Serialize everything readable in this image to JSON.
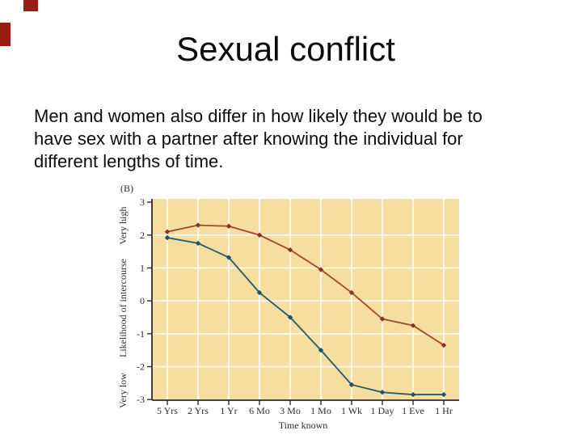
{
  "decor": {
    "corner_mark_color": "#9B1C12"
  },
  "title": {
    "text": "Sexual conflict"
  },
  "body": {
    "lines": [
      "Men and women also differ in how likely they would be to",
      "have sex with a partner after knowing the individual for",
      "different lengths of time."
    ]
  },
  "chart_data": {
    "type": "line",
    "panel_label": "(B)",
    "categories": [
      "5 Yrs",
      "2 Yrs",
      "1 Yr",
      "6 Mo",
      "3 Mo",
      "1 Mo",
      "1 Wk",
      "1 Day",
      "1 Eve",
      "1 Hr"
    ],
    "series": [
      {
        "name": "red-line",
        "color": "#A14733",
        "marker_color": "#8A331F",
        "values": [
          2.1,
          2.3,
          2.27,
          2.0,
          1.55,
          0.95,
          0.25,
          -0.55,
          -0.75,
          -1.35
        ]
      },
      {
        "name": "teal-line",
        "color": "#27596A",
        "marker_color": "#1F5264",
        "values": [
          1.92,
          1.75,
          1.32,
          0.25,
          -0.5,
          -1.5,
          -2.55,
          -2.78,
          -2.85,
          -2.85
        ]
      }
    ],
    "xlabel": "Time known",
    "ylabel": "Likelihood of intercourse",
    "ylabel_top": "Very high",
    "ylabel_bottom": "Very low",
    "yticks": [
      3,
      2,
      1,
      0,
      -1,
      -2,
      -3
    ],
    "ylim": [
      -3.02,
      3.1
    ],
    "grid": true,
    "legend": "none",
    "colors": {
      "plot_bg": "#F6DEA1",
      "grid": "#FFFFFF",
      "axis": "#2D2D2D",
      "text": "#2D2D2D"
    }
  }
}
